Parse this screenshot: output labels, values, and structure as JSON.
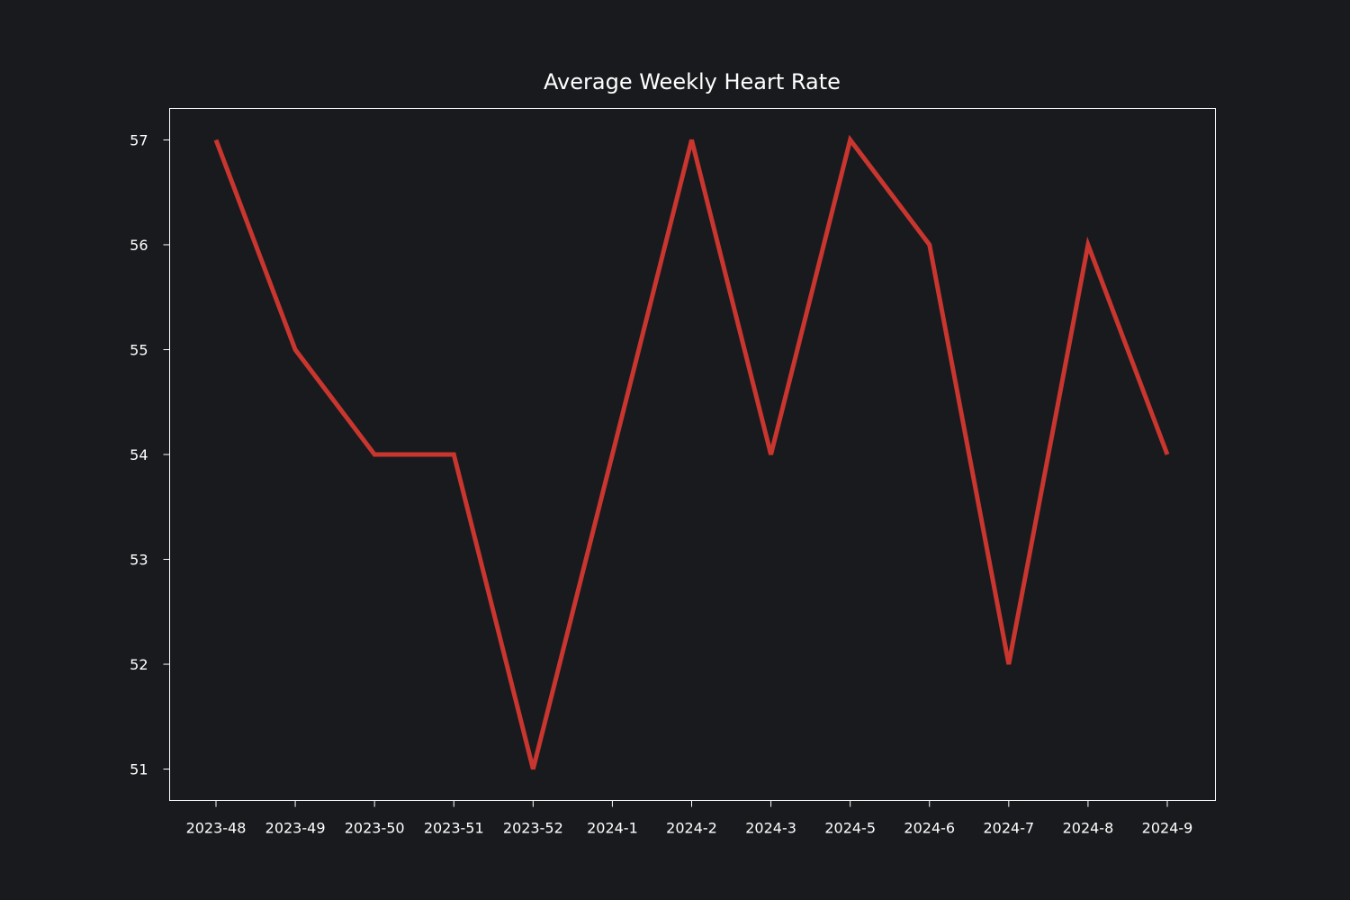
{
  "chart_data": {
    "type": "line",
    "title": "Average Weekly Heart Rate",
    "xlabel": "",
    "ylabel": "",
    "categories": [
      "2023-48",
      "2023-49",
      "2023-50",
      "2023-51",
      "2023-52",
      "2024-1",
      "2024-2",
      "2024-3",
      "2024-5",
      "2024-6",
      "2024-7",
      "2024-8",
      "2024-9"
    ],
    "series": [
      {
        "values": [
          57,
          55,
          54,
          54,
          51,
          54,
          57,
          54,
          57,
          56,
          52,
          56,
          54
        ],
        "color": "#c8362f"
      }
    ],
    "yticks": [
      51,
      52,
      53,
      54,
      55,
      56,
      57
    ],
    "ylim": [
      50.7,
      57.3
    ],
    "grid": false,
    "legend": "none",
    "colors": {
      "background": "#191a1d",
      "axes": "#ffffff",
      "text": "#ffffff"
    }
  }
}
